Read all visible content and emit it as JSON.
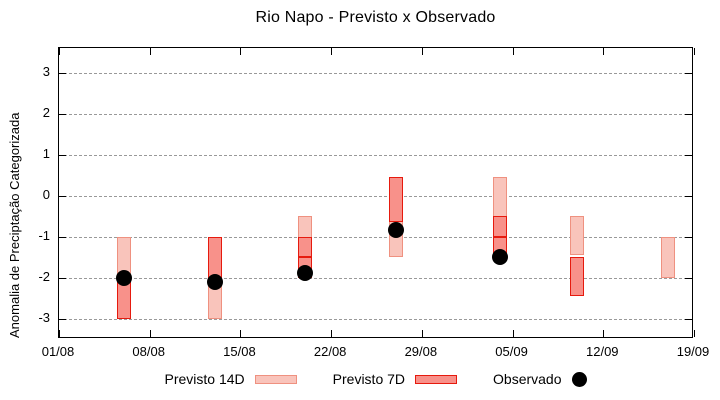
{
  "chart_data": {
    "type": "candlestick-range",
    "title": "Rio Napo - Previsto x Observado",
    "ylabel": "Anomalia de Preciptação Categorizada",
    "grid": "on",
    "grid_color": "#999999",
    "legend_position": "below-chart",
    "legend": [
      {
        "key": "p14",
        "label": "Previsto 14D",
        "fill": "#f9c4bb",
        "border": "#ef9180"
      },
      {
        "key": "p7",
        "label": "Previsto 7D",
        "fill": "#f8918a",
        "border": "#e61a0e"
      },
      {
        "key": "obs",
        "label": "Observado",
        "fill": "#000000",
        "border": "#000000"
      }
    ],
    "x_axis": {
      "tick_labels": [
        "01/08",
        "08/08",
        "15/08",
        "22/08",
        "29/08",
        "05/09",
        "12/09",
        "19/09"
      ],
      "tick_days": [
        0,
        7,
        14,
        21,
        28,
        35,
        42,
        49
      ],
      "total_days": 49
    },
    "y_axis": {
      "ticks": [
        3,
        2,
        1,
        0,
        -1,
        -2,
        -3
      ],
      "min": -3.5,
      "max": 3.6
    },
    "points": [
      {
        "date": "06/08",
        "day": 5,
        "previsto_14d": [
          -1,
          -3
        ],
        "previsto_7d": [
          [
            -2,
            -3
          ]
        ],
        "observado": -2.0
      },
      {
        "date": "13/08",
        "day": 12,
        "previsto_14d": [
          -1,
          -3
        ],
        "previsto_7d": [
          [
            -1,
            -2
          ]
        ],
        "observado": -2.1
      },
      {
        "date": "20/08",
        "day": 19,
        "previsto_14d": [
          -0.5,
          -2
        ],
        "previsto_7d": [
          [
            -1,
            -1.5
          ],
          [
            -1.5,
            -2
          ]
        ],
        "observado": -1.9
      },
      {
        "date": "27/08",
        "day": 26,
        "previsto_14d": [
          0.45,
          -1.5
        ],
        "previsto_7d": [
          [
            0.45,
            -0.65
          ]
        ],
        "observado": -0.85
      },
      {
        "date": "04/09",
        "day": 34,
        "previsto_14d": [
          0.45,
          -1.5
        ],
        "previsto_7d": [
          [
            -0.5,
            -1
          ],
          [
            -1,
            -1.5
          ]
        ],
        "observado": -1.5
      },
      {
        "date": "10/09",
        "day": 40,
        "previsto_14d": [
          -0.5,
          -1.45
        ],
        "previsto_7d": [
          [
            -1.5,
            -2.45
          ]
        ],
        "observado": null
      },
      {
        "date": "17/09",
        "day": 47,
        "previsto_14d": [
          -1,
          -2
        ],
        "previsto_7d": [],
        "observado": null
      }
    ]
  }
}
